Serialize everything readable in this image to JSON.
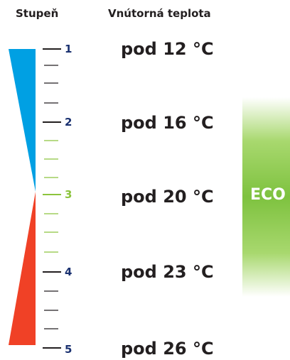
{
  "headers": {
    "level": "Stupeň",
    "temperature": "Vnútorná teplota"
  },
  "levels": [
    {
      "number": "1",
      "temperature": "pod 12 °C",
      "color": "#1a3170"
    },
    {
      "number": "2",
      "temperature": "pod 16 °C",
      "color": "#1a3170"
    },
    {
      "number": "3",
      "temperature": "pod 20 °C",
      "color": "#8cc43d"
    },
    {
      "number": "4",
      "temperature": "pod 23 °C",
      "color": "#1a3170"
    },
    {
      "number": "5",
      "temperature": "pod 26 °C",
      "color": "#1a3170"
    }
  ],
  "eco": {
    "label": "ECO"
  },
  "colors": {
    "cold_wedge": "#00a0e3",
    "warm_wedge": "#f04126",
    "tick_dark": "#231f20",
    "tick_green": "#8cc43d",
    "eco_green": "#7ec23f"
  }
}
